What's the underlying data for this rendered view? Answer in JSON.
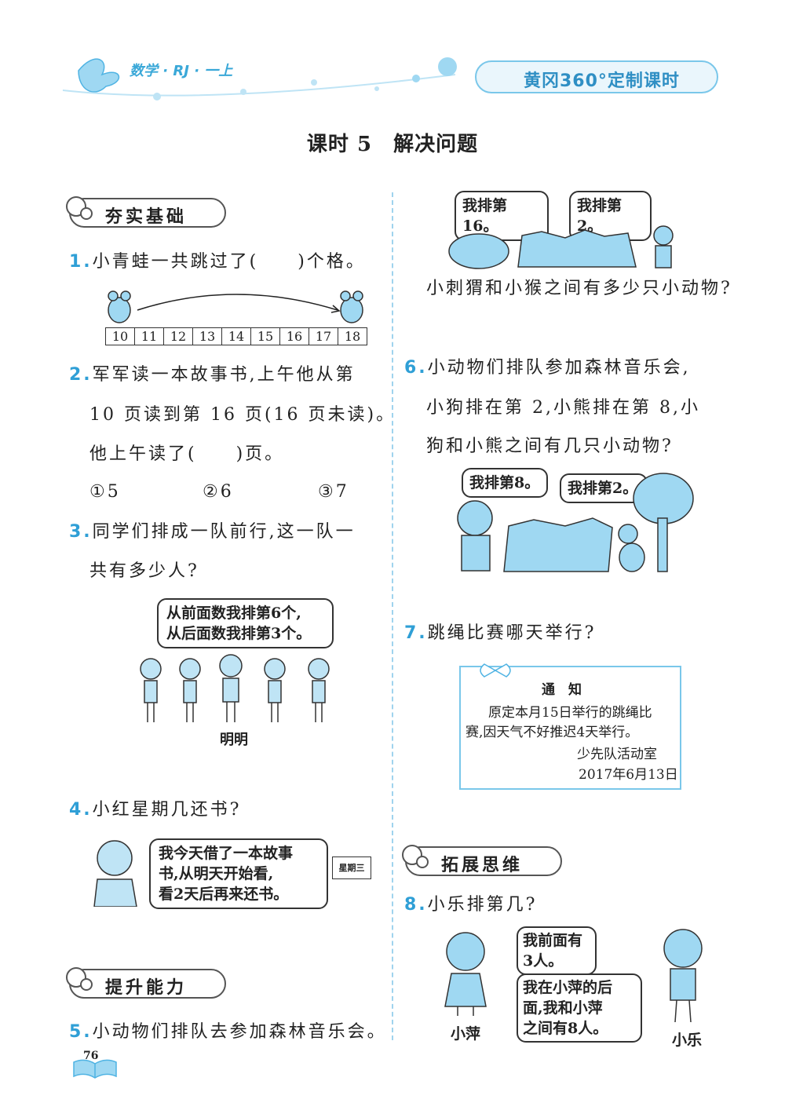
{
  "header": {
    "subject": "数学 · RJ · 一上",
    "brand": "黄冈360°定制课时"
  },
  "title": "课时 5　解决问题",
  "sections": {
    "basic": "夯实基础",
    "improve": "提升能力",
    "extend": "拓展思维"
  },
  "q1": {
    "num": "1.",
    "text": "小青蛙一共跳过了(　　)个格。",
    "cells": [
      "10",
      "11",
      "12",
      "13",
      "14",
      "15",
      "16",
      "17",
      "18"
    ]
  },
  "q2": {
    "num": "2.",
    "line1": "军军读一本故事书,上午他从第",
    "line2": "10 页读到第 16 页(16 页未读)。",
    "line3": "他上午读了(　　)页。",
    "opt1": "①5",
    "opt2": "②6",
    "opt3": "③7"
  },
  "q3": {
    "num": "3.",
    "line1": "同学们排成一队前行,这一队一",
    "line2": "共有多少人?",
    "bubble1": "从前面数我排第6个,",
    "bubble2": "从后面数我排第3个。",
    "name": "明明"
  },
  "q4": {
    "num": "4.",
    "text": "小红星期几还书?",
    "bubble1": "我今天借了一本故事",
    "bubble2": "书,从明天开始看,",
    "bubble3": "看2天后再来还书。",
    "calendar": "星期三"
  },
  "q5": {
    "num": "5.",
    "text": "小动物们排队去参加森林音乐会。",
    "bubbleA": "我排第16。",
    "bubbleB": "我排第2。",
    "question": "小刺猬和小猴之间有多少只小动物?"
  },
  "q6": {
    "num": "6.",
    "line1": "小动物们排队参加森林音乐会,",
    "line2": "小狗排在第 2,小熊排在第 8,小",
    "line3": "狗和小熊之间有几只小动物?",
    "bubbleA": "我排第8。",
    "bubbleB": "我排第2。"
  },
  "q7": {
    "num": "7.",
    "text": "跳绳比赛哪天举行?",
    "notice_title": "通　知",
    "notice_l1": "原定本月15日举行的跳绳比",
    "notice_l2": "赛,因天气不好推迟4天举行。",
    "notice_sign": "少先队活动室",
    "notice_date": "2017年6月13日"
  },
  "q8": {
    "num": "8.",
    "text": "小乐排第几?",
    "bubbleA1": "我前面有",
    "bubbleA2": "3人。",
    "bubbleB1": "我在小萍的后",
    "bubbleB2": "面,我和小萍",
    "bubbleB3": "之间有8人。",
    "nameGirl": "小萍",
    "nameBoy": "小乐"
  },
  "page_number": "76",
  "colors": {
    "accent": "#2f9fd6",
    "light": "#9fd8f2"
  }
}
